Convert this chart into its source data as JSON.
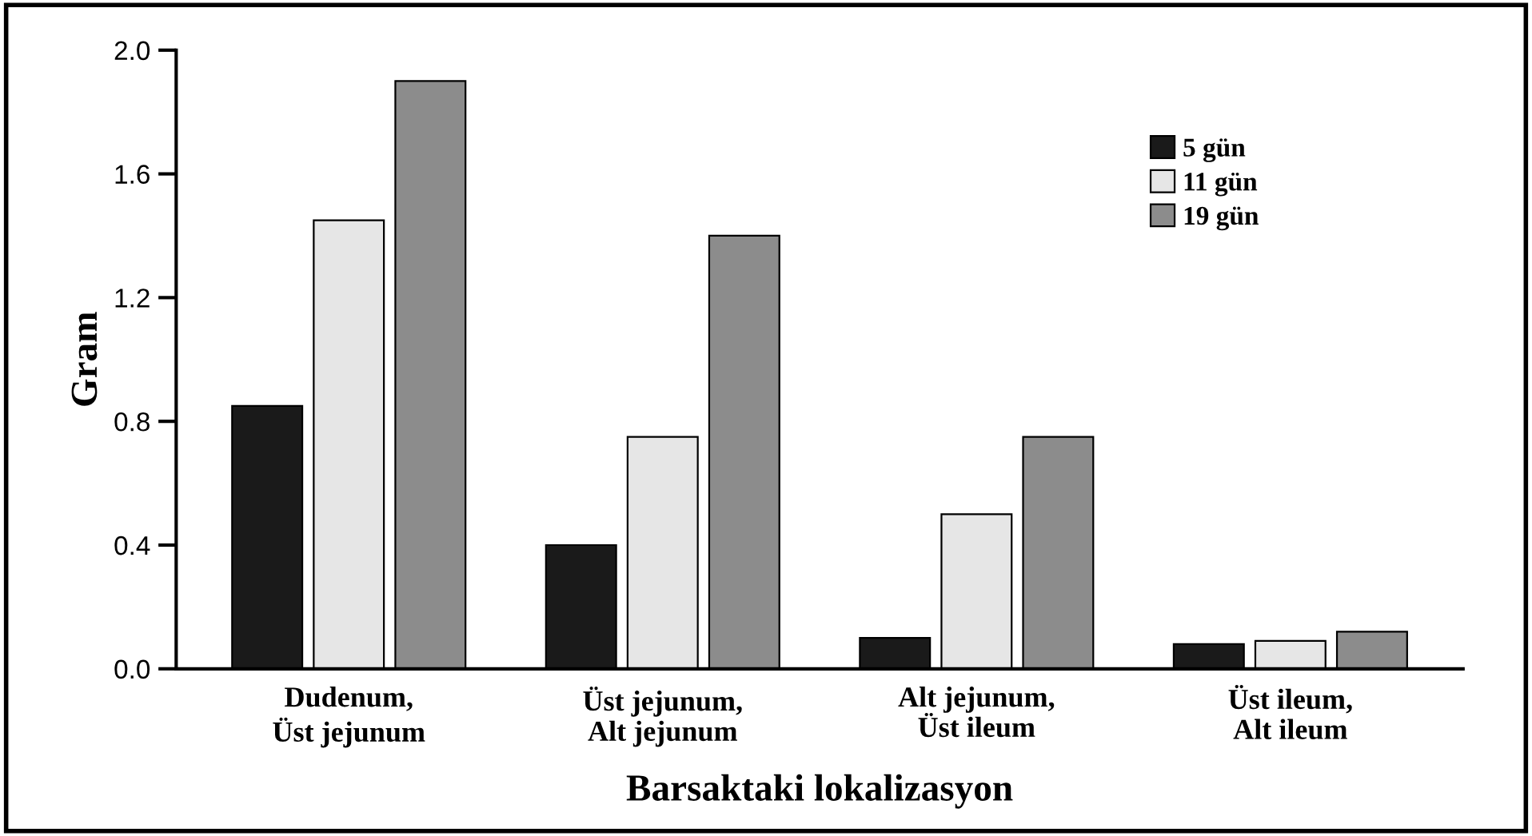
{
  "chart_data": {
    "type": "bar",
    "xlabel": "Barsaktaki lokalizasyon",
    "ylabel": "Gram",
    "categories": [
      "Dudenum,\nÜst jejunum",
      "Üst jejunum,\nAlt jejunum",
      "Alt jejunum,\nÜst ileum",
      "Üst ileum,\nAlt ileum"
    ],
    "series": [
      {
        "name": "5 gün",
        "color": "#1a1a1a",
        "values": [
          0.85,
          0.4,
          0.1,
          0.08
        ]
      },
      {
        "name": "11 gün",
        "color": "#e6e6e6",
        "values": [
          1.45,
          0.75,
          0.5,
          0.09
        ]
      },
      {
        "name": "19 gün",
        "color": "#8c8c8c",
        "values": [
          1.9,
          1.4,
          0.75,
          0.12
        ]
      }
    ],
    "ylim": [
      0,
      2.0
    ],
    "yticks": [
      {
        "value": 0,
        "label": "0.0"
      },
      {
        "value": 0.4,
        "label": "0.4"
      },
      {
        "value": 0.8,
        "label": "0.8"
      },
      {
        "value": 1.2,
        "label": "1.2"
      },
      {
        "value": 1.6,
        "label": "1.6"
      },
      {
        "value": 2.0,
        "label": "2.0"
      }
    ],
    "grid": false,
    "legend": "top right"
  }
}
